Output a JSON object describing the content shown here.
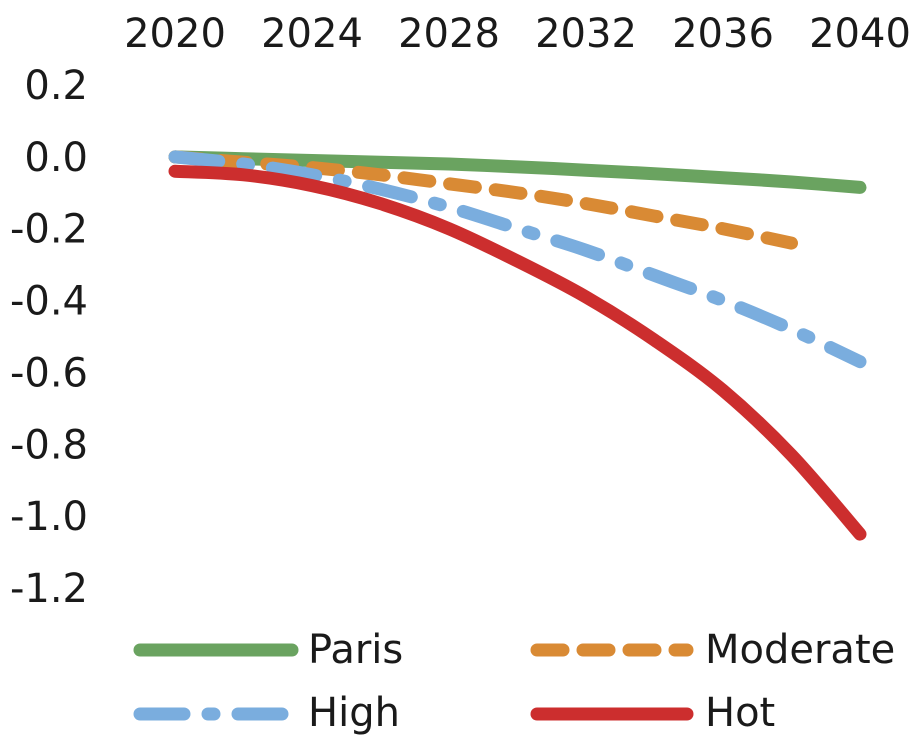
{
  "chart_data": {
    "type": "line",
    "title": "",
    "xlabel": "",
    "ylabel": "",
    "x": [
      2020,
      2022,
      2024,
      2026,
      2028,
      2030,
      2032,
      2034,
      2036,
      2038,
      2040
    ],
    "xticks": [
      "2020",
      "2024",
      "2028",
      "2032",
      "2036",
      "2040"
    ],
    "xlim": [
      2020,
      2040
    ],
    "x_axis_position": "top",
    "yticks": [
      "0.2",
      "0.0",
      "-0.2",
      "-0.4",
      "-0.6",
      "-0.8",
      "-1.0",
      "-1.2"
    ],
    "ylim": [
      -1.2,
      0.2
    ],
    "grid": false,
    "legend_position": "bottom",
    "series": [
      {
        "name": "Paris",
        "color": "#6aa360",
        "dash": "solid",
        "values": [
          0.0,
          -0.005,
          -0.01,
          -0.015,
          -0.02,
          -0.028,
          -0.037,
          -0.047,
          -0.058,
          -0.07,
          -0.085
        ]
      },
      {
        "name": "Moderate",
        "color": "#d98a34",
        "dash": "dashed",
        "values": [
          0.0,
          -0.015,
          -0.03,
          -0.05,
          -0.075,
          -0.1,
          -0.13,
          -0.165,
          -0.2,
          -0.24,
          null
        ]
      },
      {
        "name": "High",
        "color": "#7aadde",
        "dash": "dash-dot",
        "values": [
          0.0,
          -0.02,
          -0.05,
          -0.09,
          -0.14,
          -0.2,
          -0.26,
          -0.33,
          -0.4,
          -0.48,
          -0.57
        ]
      },
      {
        "name": "Hot",
        "color": "#cc2e2e",
        "dash": "solid",
        "values": [
          -0.04,
          -0.05,
          -0.08,
          -0.13,
          -0.2,
          -0.29,
          -0.39,
          -0.51,
          -0.65,
          -0.83,
          -1.05
        ]
      }
    ]
  }
}
